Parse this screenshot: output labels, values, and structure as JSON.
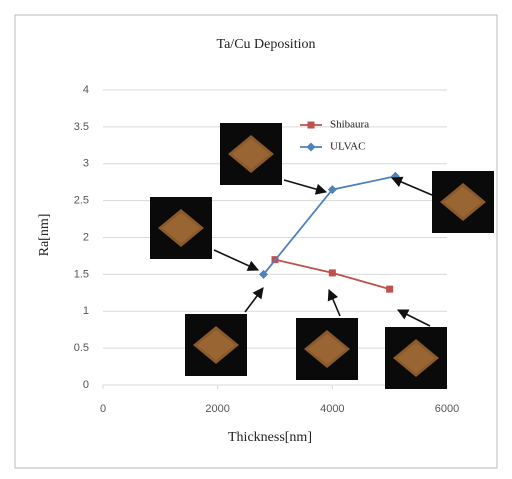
{
  "chart_data": {
    "type": "line",
    "title": "Ta/Cu Deposition",
    "x_label": "Thickness[nm]",
    "y_label": "Ra[nm]",
    "xlim": [
      0,
      6000
    ],
    "xticks": [
      0,
      2000,
      4000,
      6000
    ],
    "ylim": [
      0,
      4
    ],
    "yticks": [
      0,
      0.5,
      1,
      1.5,
      2,
      2.5,
      3,
      3.5,
      4
    ],
    "grid": true,
    "series": [
      {
        "name": "Shibaura",
        "color": "#c0504d",
        "marker": "square",
        "x": [
          3000,
          4000,
          5000
        ],
        "values": [
          1.7,
          1.52,
          1.3
        ]
      },
      {
        "name": "ULVAC",
        "color": "#4f81bd",
        "marker": "diamond",
        "x": [
          2800,
          4000,
          5100
        ],
        "values": [
          1.5,
          2.65,
          2.83
        ]
      }
    ]
  }
}
